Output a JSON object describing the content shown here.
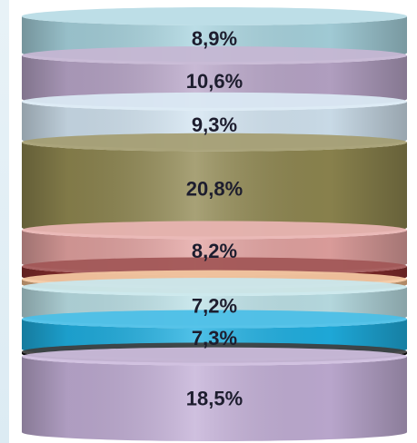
{
  "chart_data": {
    "type": "stacked-cylinder",
    "title": "",
    "segments": [
      {
        "value": 8.9,
        "label": "8,9%",
        "color": "#a8d4df",
        "show_label": true
      },
      {
        "value": 10.6,
        "label": "10,6%",
        "color": "#b9a6c9",
        "show_label": true
      },
      {
        "value": 9.3,
        "label": "9,3%",
        "color": "#d3e5f2",
        "show_label": true
      },
      {
        "value": 20.8,
        "label": "20,8%",
        "color": "#8f8750",
        "show_label": true
      },
      {
        "value": 8.2,
        "label": "8,2%",
        "color": "#e4a3a1",
        "show_label": true
      },
      {
        "value": 2.5,
        "label": "",
        "color": "#8c2f2f",
        "show_label": false
      },
      {
        "value": 1.2,
        "label": "",
        "color": "#f2bc8c",
        "show_label": false
      },
      {
        "value": 7.2,
        "label": "7,2%",
        "color": "#bde2e8",
        "show_label": true
      },
      {
        "value": 7.3,
        "label": "7,3%",
        "color": "#1fb0e2",
        "show_label": true
      },
      {
        "value": 0.5,
        "label": "",
        "color": "#111111",
        "show_label": false
      },
      {
        "value": 18.5,
        "label": "18,5%",
        "color": "#c2aed6",
        "show_label": true
      }
    ]
  }
}
